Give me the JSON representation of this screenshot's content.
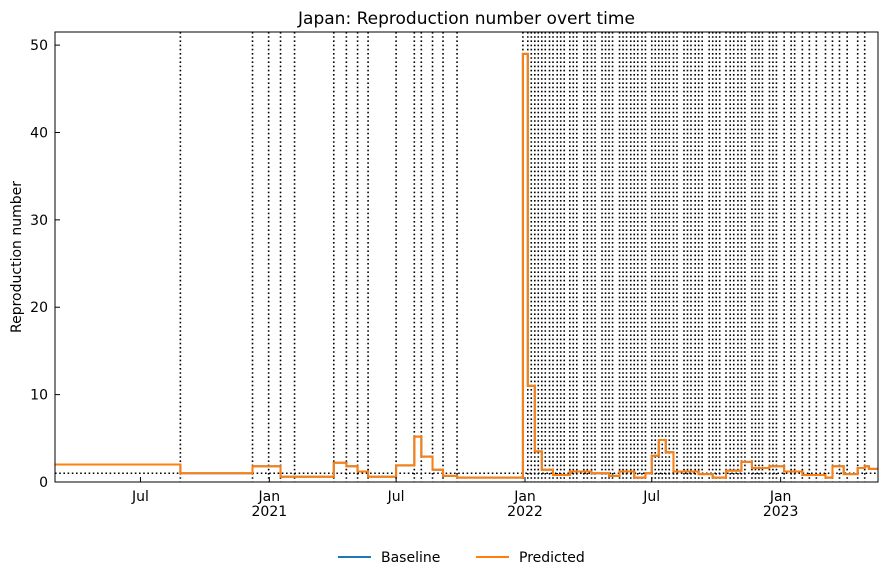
{
  "chart_data": {
    "type": "line",
    "title": "Japan: Reproduction number overt time",
    "xlabel": "",
    "ylabel": "Reproduction number",
    "xlim": [
      "2020-03-01",
      "2023-05-20"
    ],
    "ylim": [
      0,
      51.5
    ],
    "yticks": [
      0,
      10,
      20,
      30,
      40,
      50
    ],
    "xticks": [
      {
        "date": "2020-07-01",
        "label": "Jul",
        "sublabel": ""
      },
      {
        "date": "2021-01-01",
        "label": "Jan",
        "sublabel": "2021"
      },
      {
        "date": "2021-07-01",
        "label": "Jul",
        "sublabel": ""
      },
      {
        "date": "2022-01-01",
        "label": "Jan",
        "sublabel": "2022"
      },
      {
        "date": "2022-07-01",
        "label": "Jul",
        "sublabel": ""
      },
      {
        "date": "2023-01-01",
        "label": "Jan",
        "sublabel": "2023"
      }
    ],
    "reference_line_y": 1,
    "legend": {
      "placement": "bottom-center"
    },
    "series": [
      {
        "name": "Baseline",
        "color": "#1f77b4",
        "step": true,
        "points": [
          [
            "2020-03-01",
            2.0
          ],
          [
            "2020-08-27",
            1.0
          ],
          [
            "2020-12-08",
            1.8
          ],
          [
            "2021-01-17",
            0.6
          ],
          [
            "2021-04-03",
            2.2
          ],
          [
            "2021-04-21",
            1.8
          ],
          [
            "2021-05-07",
            1.2
          ],
          [
            "2021-05-22",
            0.6
          ],
          [
            "2021-07-01",
            1.9
          ],
          [
            "2021-07-27",
            5.2
          ],
          [
            "2021-08-06",
            2.9
          ],
          [
            "2021-08-22",
            1.4
          ],
          [
            "2021-09-06",
            0.7
          ],
          [
            "2021-09-26",
            0.5
          ],
          [
            "2021-12-29",
            49.0
          ],
          [
            "2022-01-05",
            11.0
          ],
          [
            "2022-01-15",
            3.5
          ],
          [
            "2022-01-25",
            1.4
          ],
          [
            "2022-02-10",
            0.8
          ],
          [
            "2022-03-06",
            1.2
          ],
          [
            "2022-04-06",
            1.0
          ],
          [
            "2022-05-01",
            0.7
          ],
          [
            "2022-05-16",
            1.2
          ],
          [
            "2022-06-06",
            0.5
          ],
          [
            "2022-06-22",
            1.0
          ],
          [
            "2022-07-01",
            3.0
          ],
          [
            "2022-07-11",
            4.8
          ],
          [
            "2022-07-21",
            3.4
          ],
          [
            "2022-08-01",
            1.2
          ],
          [
            "2022-09-06",
            0.9
          ],
          [
            "2022-09-26",
            0.5
          ],
          [
            "2022-10-15",
            1.3
          ],
          [
            "2022-11-06",
            2.3
          ],
          [
            "2022-11-21",
            1.6
          ],
          [
            "2022-12-16",
            1.8
          ],
          [
            "2023-01-06",
            1.2
          ],
          [
            "2023-02-01",
            0.8
          ],
          [
            "2023-03-06",
            0.5
          ],
          [
            "2023-03-16",
            1.8
          ],
          [
            "2023-04-01",
            0.9
          ],
          [
            "2023-04-21",
            1.6
          ],
          [
            "2023-05-01",
            1.8
          ],
          [
            "2023-05-07",
            1.5
          ],
          [
            "2023-05-20",
            1.5
          ]
        ]
      },
      {
        "name": "Predicted",
        "color": "#ff7f0e",
        "step": true,
        "points": [
          [
            "2020-03-01",
            2.0
          ],
          [
            "2020-08-27",
            1.0
          ],
          [
            "2020-12-08",
            1.8
          ],
          [
            "2021-01-17",
            0.6
          ],
          [
            "2021-04-03",
            2.2
          ],
          [
            "2021-04-21",
            1.8
          ],
          [
            "2021-05-07",
            1.2
          ],
          [
            "2021-05-22",
            0.6
          ],
          [
            "2021-07-01",
            1.9
          ],
          [
            "2021-07-27",
            5.2
          ],
          [
            "2021-08-06",
            2.9
          ],
          [
            "2021-08-22",
            1.4
          ],
          [
            "2021-09-06",
            0.7
          ],
          [
            "2021-09-26",
            0.5
          ],
          [
            "2021-12-29",
            49.0
          ],
          [
            "2022-01-05",
            11.0
          ],
          [
            "2022-01-15",
            3.5
          ],
          [
            "2022-01-25",
            1.4
          ],
          [
            "2022-02-10",
            0.8
          ],
          [
            "2022-03-06",
            1.2
          ],
          [
            "2022-04-06",
            1.0
          ],
          [
            "2022-05-01",
            0.7
          ],
          [
            "2022-05-16",
            1.2
          ],
          [
            "2022-06-06",
            0.5
          ],
          [
            "2022-06-22",
            1.0
          ],
          [
            "2022-07-01",
            3.0
          ],
          [
            "2022-07-11",
            4.8
          ],
          [
            "2022-07-21",
            3.4
          ],
          [
            "2022-08-01",
            1.2
          ],
          [
            "2022-09-06",
            0.9
          ],
          [
            "2022-09-26",
            0.5
          ],
          [
            "2022-10-15",
            1.3
          ],
          [
            "2022-11-06",
            2.3
          ],
          [
            "2022-11-21",
            1.6
          ],
          [
            "2022-12-16",
            1.8
          ],
          [
            "2023-01-06",
            1.2
          ],
          [
            "2023-02-01",
            0.8
          ],
          [
            "2023-03-06",
            0.5
          ],
          [
            "2023-03-16",
            1.8
          ],
          [
            "2023-04-01",
            0.9
          ],
          [
            "2023-04-21",
            1.6
          ],
          [
            "2023-05-01",
            1.8
          ],
          [
            "2023-05-07",
            1.5
          ],
          [
            "2023-05-20",
            1.5
          ]
        ]
      }
    ],
    "changepoints": [
      "2020-08-27",
      "2020-12-08",
      "2020-12-31",
      "2021-01-17",
      "2021-02-06",
      "2021-04-03",
      "2021-04-21",
      "2021-05-07",
      "2021-05-22",
      "2021-07-01",
      "2021-07-27",
      "2021-08-06",
      "2021-08-22",
      "2021-09-06",
      "2021-09-26",
      "2021-12-29",
      "2022-01-05",
      "2022-01-10",
      "2022-01-15",
      "2022-01-20",
      "2022-01-25",
      "2022-01-30",
      "2022-02-05",
      "2022-02-10",
      "2022-02-16",
      "2022-02-21",
      "2022-02-26",
      "2022-03-06",
      "2022-03-11",
      "2022-03-16",
      "2022-03-26",
      "2022-03-31",
      "2022-04-06",
      "2022-04-11",
      "2022-04-21",
      "2022-04-26",
      "2022-05-01",
      "2022-05-06",
      "2022-05-16",
      "2022-05-21",
      "2022-05-26",
      "2022-06-01",
      "2022-06-06",
      "2022-06-11",
      "2022-06-17",
      "2022-06-22",
      "2022-07-01",
      "2022-07-06",
      "2022-07-11",
      "2022-07-16",
      "2022-07-21",
      "2022-07-26",
      "2022-08-01",
      "2022-08-06",
      "2022-08-16",
      "2022-08-21",
      "2022-08-26",
      "2022-09-01",
      "2022-09-06",
      "2022-09-11",
      "2022-09-21",
      "2022-09-26",
      "2022-10-01",
      "2022-10-06",
      "2022-10-15",
      "2022-10-21",
      "2022-10-26",
      "2022-11-01",
      "2022-11-06",
      "2022-11-11",
      "2022-11-21",
      "2022-11-26",
      "2022-12-01",
      "2022-12-06",
      "2022-12-16",
      "2022-12-21",
      "2022-12-26",
      "2023-01-06",
      "2023-01-16",
      "2023-01-21",
      "2023-02-01",
      "2023-02-11",
      "2023-02-21",
      "2023-03-06",
      "2023-03-16",
      "2023-03-26",
      "2023-04-06",
      "2023-04-21",
      "2023-05-01"
    ]
  }
}
